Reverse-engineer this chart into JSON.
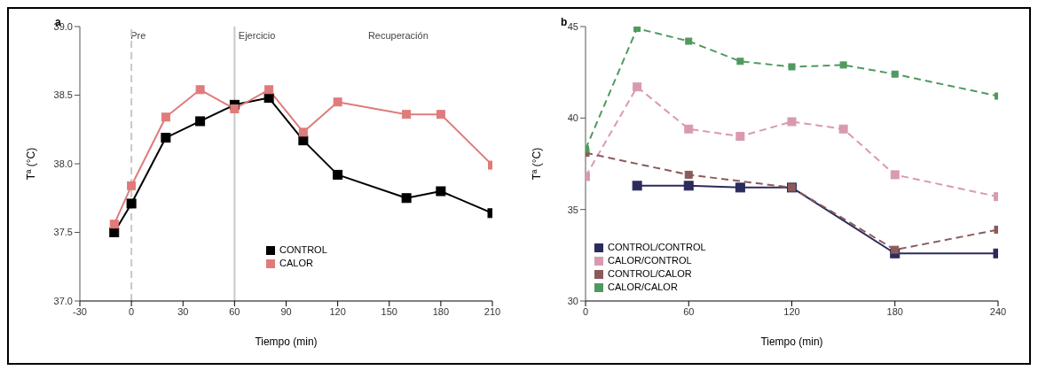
{
  "chart_data": [
    {
      "type": "line",
      "title": "a",
      "xlabel": "Tiempo (min)",
      "ylabel": "Tª (°C)",
      "xlim": [
        -30,
        210
      ],
      "xticks": [
        -30,
        0,
        30,
        60,
        90,
        120,
        150,
        180,
        210
      ],
      "ylim": [
        37,
        39
      ],
      "yticks": [
        {
          "value": 37,
          "label": "37.0"
        },
        {
          "value": 37.5,
          "label": "37.5"
        },
        {
          "value": 38,
          "label": "38.0"
        },
        {
          "value": 38.5,
          "label": "38.5"
        },
        {
          "value": 39,
          "label": "39.0"
        }
      ],
      "marker": "square",
      "legend": "bottom",
      "grid": false,
      "ref_lines": [
        {
          "axis": "x",
          "value": 0,
          "color": "#c8c8c8",
          "line_style": "dashed"
        },
        {
          "axis": "x",
          "value": 60,
          "color": "#c8c8c8",
          "line_style": "solid"
        }
      ],
      "annotations": [
        "Pre",
        "Ejercicio",
        "Recuperación"
      ],
      "series": [
        {
          "name": "CONTROL",
          "color": "#000000",
          "line_style": "solid",
          "x": [
            -10,
            0,
            20,
            40,
            60,
            80,
            100,
            120,
            160,
            180,
            210
          ],
          "values": [
            37.5,
            37.71,
            38.19,
            38.31,
            38.43,
            38.48,
            38.17,
            37.92,
            37.75,
            37.8,
            37.64
          ]
        },
        {
          "name": "CALOR",
          "color": "#e07b7b",
          "line_style": "solid",
          "x": [
            -10,
            0,
            20,
            40,
            60,
            80,
            100,
            120,
            160,
            180,
            210
          ],
          "values": [
            37.56,
            37.84,
            38.34,
            38.54,
            38.4,
            38.54,
            38.23,
            38.45,
            38.36,
            38.36,
            37.99
          ]
        }
      ]
    },
    {
      "type": "line",
      "title": "b",
      "xlabel": "Tiempo (min)",
      "ylabel": "Tª (°C)",
      "xlim": [
        0,
        240
      ],
      "xticks": [
        0,
        60,
        120,
        180,
        240
      ],
      "ylim": [
        30,
        45
      ],
      "yticks": [
        30,
        35,
        40,
        45
      ],
      "marker": "square",
      "legend": "bottom left",
      "grid": false,
      "series": [
        {
          "name": "CONTROL/CONTROL",
          "color": "#2b2b5c",
          "line_style": "solid",
          "x": [
            30,
            60,
            90,
            120,
            180,
            240
          ],
          "values": [
            36.3,
            36.3,
            36.2,
            36.2,
            32.6,
            32.6
          ]
        },
        {
          "name": "CALOR/CONTROL",
          "color": "#d99aaf",
          "line_style": "dashed",
          "x": [
            0,
            30,
            60,
            90,
            120,
            150,
            180,
            240
          ],
          "values": [
            36.8,
            41.7,
            39.4,
            39.0,
            39.8,
            39.4,
            36.9,
            35.7
          ]
        },
        {
          "name": "CONTROL/CALOR",
          "color": "#8c5a5a",
          "line_style": "dashed",
          "x": [
            0,
            60,
            120,
            180,
            240
          ],
          "values": [
            38.1,
            36.9,
            36.2,
            32.8,
            33.9
          ]
        },
        {
          "name": "CALOR/CALOR",
          "color": "#4f9a5f",
          "line_style": "dashed",
          "x": [
            0,
            30,
            60,
            90,
            120,
            150,
            180,
            240
          ],
          "values": [
            38.3,
            44.9,
            44.2,
            43.1,
            42.8,
            42.9,
            42.4,
            41.2
          ]
        }
      ]
    }
  ]
}
